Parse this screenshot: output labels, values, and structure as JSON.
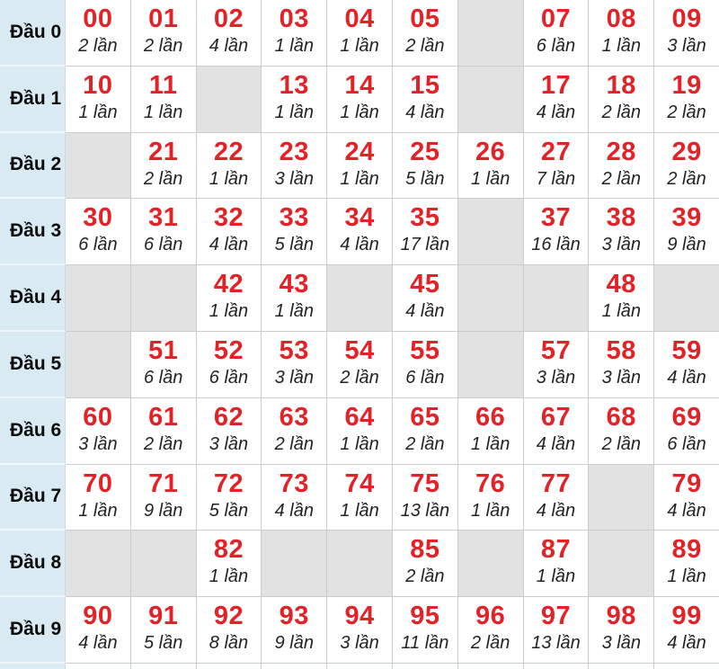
{
  "colors": {
    "number_red": "#e32227",
    "label_bg": "#d9eaf3",
    "empty_cell_bg": "#e2e2e2",
    "border": "#cccccc"
  },
  "table": {
    "row_label_prefix": "Đầu",
    "count_suffix": "lần",
    "rows": [
      {
        "label": "Đầu 0",
        "cells": [
          {
            "number": "00",
            "count": "2 lần"
          },
          {
            "number": "01",
            "count": "2 lần"
          },
          {
            "number": "02",
            "count": "4 lần"
          },
          {
            "number": "03",
            "count": "1 lần"
          },
          {
            "number": "04",
            "count": "1 lần"
          },
          {
            "number": "05",
            "count": "2 lần"
          },
          null,
          {
            "number": "07",
            "count": "6 lần"
          },
          {
            "number": "08",
            "count": "1 lần"
          },
          {
            "number": "09",
            "count": "3 lần"
          }
        ]
      },
      {
        "label": "Đầu 1",
        "cells": [
          {
            "number": "10",
            "count": "1 lần"
          },
          {
            "number": "11",
            "count": "1 lần"
          },
          null,
          {
            "number": "13",
            "count": "1 lần"
          },
          {
            "number": "14",
            "count": "1 lần"
          },
          {
            "number": "15",
            "count": "4 lần"
          },
          null,
          {
            "number": "17",
            "count": "4 lần"
          },
          {
            "number": "18",
            "count": "2 lần"
          },
          {
            "number": "19",
            "count": "2 lần"
          }
        ]
      },
      {
        "label": "Đầu 2",
        "cells": [
          null,
          {
            "number": "21",
            "count": "2 lần"
          },
          {
            "number": "22",
            "count": "1 lần"
          },
          {
            "number": "23",
            "count": "3 lần"
          },
          {
            "number": "24",
            "count": "1 lần"
          },
          {
            "number": "25",
            "count": "5 lần"
          },
          {
            "number": "26",
            "count": "1 lần"
          },
          {
            "number": "27",
            "count": "7 lần"
          },
          {
            "number": "28",
            "count": "2 lần"
          },
          {
            "number": "29",
            "count": "2 lần"
          }
        ]
      },
      {
        "label": "Đầu 3",
        "cells": [
          {
            "number": "30",
            "count": "6 lần"
          },
          {
            "number": "31",
            "count": "6 lần"
          },
          {
            "number": "32",
            "count": "4 lần"
          },
          {
            "number": "33",
            "count": "5 lần"
          },
          {
            "number": "34",
            "count": "4 lần"
          },
          {
            "number": "35",
            "count": "17 lần"
          },
          null,
          {
            "number": "37",
            "count": "16 lần"
          },
          {
            "number": "38",
            "count": "3 lần"
          },
          {
            "number": "39",
            "count": "9 lần"
          }
        ]
      },
      {
        "label": "Đầu 4",
        "cells": [
          null,
          null,
          {
            "number": "42",
            "count": "1 lần"
          },
          {
            "number": "43",
            "count": "1 lần"
          },
          null,
          {
            "number": "45",
            "count": "4 lần"
          },
          null,
          null,
          {
            "number": "48",
            "count": "1 lần"
          },
          null
        ]
      },
      {
        "label": "Đầu 5",
        "cells": [
          null,
          {
            "number": "51",
            "count": "6 lần"
          },
          {
            "number": "52",
            "count": "6 lần"
          },
          {
            "number": "53",
            "count": "3 lần"
          },
          {
            "number": "54",
            "count": "2 lần"
          },
          {
            "number": "55",
            "count": "6 lần"
          },
          null,
          {
            "number": "57",
            "count": "3 lần"
          },
          {
            "number": "58",
            "count": "3 lần"
          },
          {
            "number": "59",
            "count": "4 lần"
          }
        ]
      },
      {
        "label": "Đầu 6",
        "cells": [
          {
            "number": "60",
            "count": "3 lần"
          },
          {
            "number": "61",
            "count": "2 lần"
          },
          {
            "number": "62",
            "count": "3 lần"
          },
          {
            "number": "63",
            "count": "2 lần"
          },
          {
            "number": "64",
            "count": "1 lần"
          },
          {
            "number": "65",
            "count": "2 lần"
          },
          {
            "number": "66",
            "count": "1 lần"
          },
          {
            "number": "67",
            "count": "4 lần"
          },
          {
            "number": "68",
            "count": "2 lần"
          },
          {
            "number": "69",
            "count": "6 lần"
          }
        ]
      },
      {
        "label": "Đầu 7",
        "cells": [
          {
            "number": "70",
            "count": "1 lần"
          },
          {
            "number": "71",
            "count": "9 lần"
          },
          {
            "number": "72",
            "count": "5 lần"
          },
          {
            "number": "73",
            "count": "4 lần"
          },
          {
            "number": "74",
            "count": "1 lần"
          },
          {
            "number": "75",
            "count": "13 lần"
          },
          {
            "number": "76",
            "count": "1 lần"
          },
          {
            "number": "77",
            "count": "4 lần"
          },
          null,
          {
            "number": "79",
            "count": "4 lần"
          }
        ]
      },
      {
        "label": "Đầu 8",
        "cells": [
          null,
          null,
          {
            "number": "82",
            "count": "1 lần"
          },
          null,
          null,
          {
            "number": "85",
            "count": "2 lần"
          },
          null,
          {
            "number": "87",
            "count": "1 lần"
          },
          null,
          {
            "number": "89",
            "count": "1 lần"
          }
        ]
      },
      {
        "label": "Đầu 9",
        "cells": [
          {
            "number": "90",
            "count": "4 lần"
          },
          {
            "number": "91",
            "count": "5 lần"
          },
          {
            "number": "92",
            "count": "8 lần"
          },
          {
            "number": "93",
            "count": "9 lần"
          },
          {
            "number": "94",
            "count": "3 lần"
          },
          {
            "number": "95",
            "count": "11 lần"
          },
          {
            "number": "96",
            "count": "2 lần"
          },
          {
            "number": "97",
            "count": "13 lần"
          },
          {
            "number": "98",
            "count": "3 lần"
          },
          {
            "number": "99",
            "count": "4 lần"
          }
        ]
      }
    ]
  }
}
